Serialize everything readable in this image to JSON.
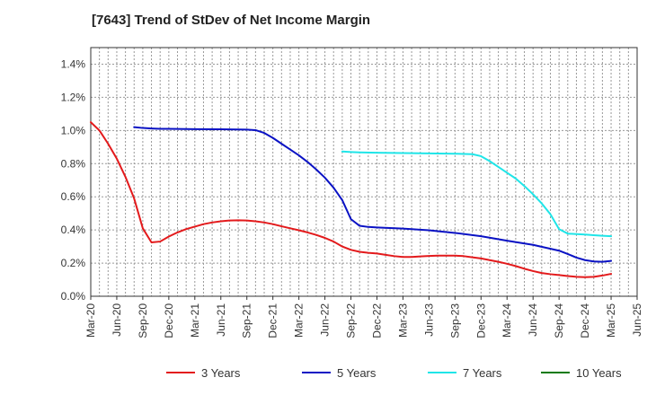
{
  "chart_data": {
    "type": "line",
    "title": "[7643]  Trend of StDev of Net Income Margin",
    "xlabel": "",
    "ylabel": "",
    "x_ticks": [
      "Mar-20",
      "Jun-20",
      "Sep-20",
      "Dec-20",
      "Mar-21",
      "Jun-21",
      "Sep-21",
      "Dec-21",
      "Mar-22",
      "Jun-22",
      "Sep-22",
      "Dec-22",
      "Mar-23",
      "Jun-23",
      "Sep-23",
      "Dec-23",
      "Mar-24",
      "Jun-24",
      "Sep-24",
      "Dec-24",
      "Mar-25",
      "Jun-25"
    ],
    "y_ticks": [
      "0.0%",
      "0.2%",
      "0.4%",
      "0.6%",
      "0.8%",
      "1.0%",
      "1.2%",
      "1.4%"
    ],
    "ylim": [
      0,
      1.5
    ],
    "grid": true,
    "legend_position": "bottom",
    "series": [
      {
        "name": "3 Years",
        "color": "#e31a1c",
        "points": [
          [
            "Mar-20",
            1.05
          ],
          [
            "Apr-20",
            1.0
          ],
          [
            "May-20",
            0.92
          ],
          [
            "Jun-20",
            0.83
          ],
          [
            "Jul-20",
            0.72
          ],
          [
            "Aug-20",
            0.59
          ],
          [
            "Sep-20",
            0.41
          ],
          [
            "Oct-20",
            0.325
          ],
          [
            "Nov-20",
            0.33
          ],
          [
            "Dec-20",
            0.36
          ],
          [
            "Jan-21",
            0.385
          ],
          [
            "Feb-21",
            0.405
          ],
          [
            "Mar-21",
            0.42
          ],
          [
            "Apr-21",
            0.435
          ],
          [
            "May-21",
            0.445
          ],
          [
            "Jun-21",
            0.452
          ],
          [
            "Jul-21",
            0.457
          ],
          [
            "Aug-21",
            0.458
          ],
          [
            "Sep-21",
            0.457
          ],
          [
            "Oct-21",
            0.452
          ],
          [
            "Nov-21",
            0.445
          ],
          [
            "Dec-21",
            0.435
          ],
          [
            "Jan-22",
            0.422
          ],
          [
            "Feb-22",
            0.41
          ],
          [
            "Mar-22",
            0.398
          ],
          [
            "Apr-22",
            0.385
          ],
          [
            "May-22",
            0.37
          ],
          [
            "Jun-22",
            0.352
          ],
          [
            "Jul-22",
            0.33
          ],
          [
            "Aug-22",
            0.3
          ],
          [
            "Sep-22",
            0.28
          ],
          [
            "Oct-22",
            0.268
          ],
          [
            "Nov-22",
            0.262
          ],
          [
            "Dec-22",
            0.258
          ],
          [
            "Jan-23",
            0.25
          ],
          [
            "Feb-23",
            0.242
          ],
          [
            "Mar-23",
            0.237
          ],
          [
            "Apr-23",
            0.237
          ],
          [
            "May-23",
            0.24
          ],
          [
            "Jun-23",
            0.243
          ],
          [
            "Jul-23",
            0.245
          ],
          [
            "Aug-23",
            0.245
          ],
          [
            "Sep-23",
            0.245
          ],
          [
            "Oct-23",
            0.242
          ],
          [
            "Nov-23",
            0.235
          ],
          [
            "Dec-23",
            0.228
          ],
          [
            "Jan-24",
            0.218
          ],
          [
            "Feb-24",
            0.208
          ],
          [
            "Mar-24",
            0.196
          ],
          [
            "Apr-24",
            0.182
          ],
          [
            "May-24",
            0.166
          ],
          [
            "Jun-24",
            0.152
          ],
          [
            "Jul-24",
            0.14
          ],
          [
            "Aug-24",
            0.133
          ],
          [
            "Sep-24",
            0.128
          ],
          [
            "Oct-24",
            0.122
          ],
          [
            "Nov-24",
            0.117
          ],
          [
            "Dec-24",
            0.115
          ],
          [
            "Jan-25",
            0.117
          ],
          [
            "Feb-25",
            0.125
          ],
          [
            "Mar-25",
            0.135
          ]
        ]
      },
      {
        "name": "5 Years",
        "color": "#0a12c4",
        "points": [
          [
            "Aug-20",
            1.02
          ],
          [
            "Sep-20",
            1.015
          ],
          [
            "Oct-20",
            1.012
          ],
          [
            "Nov-20",
            1.01
          ],
          [
            "Dec-20",
            1.01
          ],
          [
            "Mar-21",
            1.008
          ],
          [
            "Jun-21",
            1.007
          ],
          [
            "Sep-21",
            1.005
          ],
          [
            "Oct-21",
            1.002
          ],
          [
            "Nov-21",
            0.985
          ],
          [
            "Dec-21",
            0.955
          ],
          [
            "Jan-22",
            0.92
          ],
          [
            "Feb-22",
            0.885
          ],
          [
            "Mar-22",
            0.85
          ],
          [
            "Apr-22",
            0.81
          ],
          [
            "May-22",
            0.765
          ],
          [
            "Jun-22",
            0.715
          ],
          [
            "Jul-22",
            0.655
          ],
          [
            "Aug-22",
            0.58
          ],
          [
            "Sep-22",
            0.465
          ],
          [
            "Oct-22",
            0.425
          ],
          [
            "Nov-22",
            0.418
          ],
          [
            "Dec-22",
            0.415
          ],
          [
            "Mar-23",
            0.408
          ],
          [
            "Jun-23",
            0.398
          ],
          [
            "Sep-23",
            0.382
          ],
          [
            "Dec-23",
            0.362
          ],
          [
            "Mar-24",
            0.335
          ],
          [
            "Jun-24",
            0.31
          ],
          [
            "Sep-24",
            0.275
          ],
          [
            "Oct-24",
            0.255
          ],
          [
            "Nov-24",
            0.233
          ],
          [
            "Dec-24",
            0.218
          ],
          [
            "Jan-25",
            0.21
          ],
          [
            "Feb-25",
            0.208
          ],
          [
            "Mar-25",
            0.213
          ]
        ]
      },
      {
        "name": "7 Years",
        "color": "#1fe5e8",
        "points": [
          [
            "Aug-22",
            0.873
          ],
          [
            "Sep-22",
            0.87
          ],
          [
            "Oct-22",
            0.868
          ],
          [
            "Dec-22",
            0.866
          ],
          [
            "Mar-23",
            0.864
          ],
          [
            "Jun-23",
            0.862
          ],
          [
            "Sep-23",
            0.86
          ],
          [
            "Nov-23",
            0.857
          ],
          [
            "Dec-23",
            0.845
          ],
          [
            "Jan-24",
            0.815
          ],
          [
            "Feb-24",
            0.78
          ],
          [
            "Mar-24",
            0.745
          ],
          [
            "Apr-24",
            0.71
          ],
          [
            "May-24",
            0.665
          ],
          [
            "Jun-24",
            0.615
          ],
          [
            "Jul-24",
            0.56
          ],
          [
            "Aug-24",
            0.495
          ],
          [
            "Sep-24",
            0.405
          ],
          [
            "Oct-24",
            0.378
          ],
          [
            "Nov-24",
            0.375
          ],
          [
            "Dec-24",
            0.372
          ],
          [
            "Jan-25",
            0.368
          ],
          [
            "Feb-25",
            0.365
          ],
          [
            "Mar-25",
            0.362
          ]
        ]
      },
      {
        "name": "10 Years",
        "color": "#0b7a0b",
        "points": []
      }
    ]
  }
}
